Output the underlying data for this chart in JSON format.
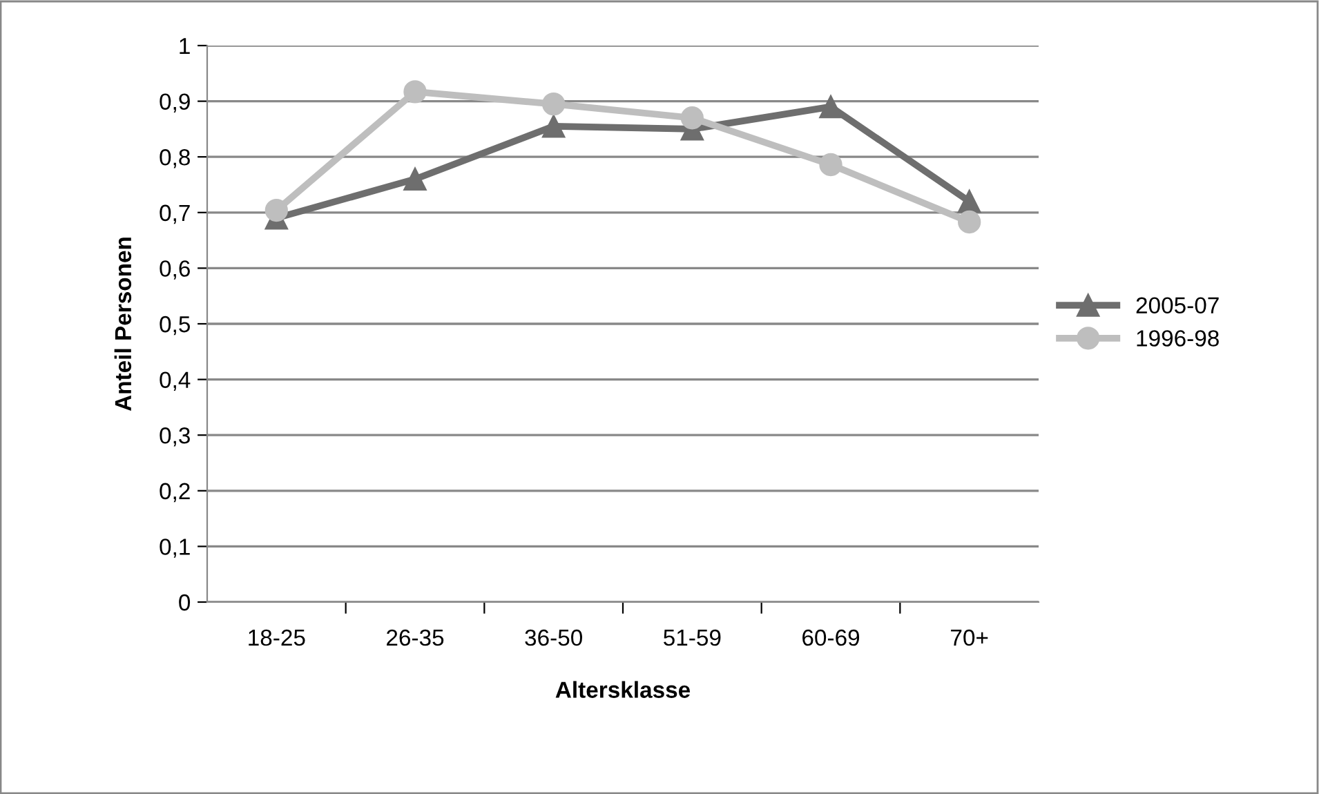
{
  "chart_data": {
    "type": "line",
    "xlabel": "Altersklasse",
    "ylabel": "Anteil Personen",
    "categories": [
      "18-25",
      "26-35",
      "36-50",
      "51-59",
      "60-69",
      "70+"
    ],
    "series": [
      {
        "name": "2005-07",
        "color": "#6e6e6e",
        "marker": "triangle",
        "values": [
          0.69,
          0.76,
          0.855,
          0.85,
          0.89,
          0.72
        ]
      },
      {
        "name": "1996-98",
        "color": "#bebebe",
        "marker": "circle",
        "values": [
          0.704,
          0.917,
          0.895,
          0.87,
          0.786,
          0.683
        ]
      }
    ],
    "ylim": [
      0,
      1
    ],
    "yticks": [
      {
        "value": 0,
        "label": "0"
      },
      {
        "value": 0.1,
        "label": "0,1"
      },
      {
        "value": 0.2,
        "label": "0,2"
      },
      {
        "value": 0.3,
        "label": "0,3"
      },
      {
        "value": 0.4,
        "label": "0,4"
      },
      {
        "value": 0.5,
        "label": "0,5"
      },
      {
        "value": 0.6,
        "label": "0,6"
      },
      {
        "value": 0.7,
        "label": "0,7"
      },
      {
        "value": 0.8,
        "label": "0,8"
      },
      {
        "value": 0.9,
        "label": "0,9"
      },
      {
        "value": 1,
        "label": "1"
      }
    ],
    "grid": "y",
    "legend": "right"
  }
}
